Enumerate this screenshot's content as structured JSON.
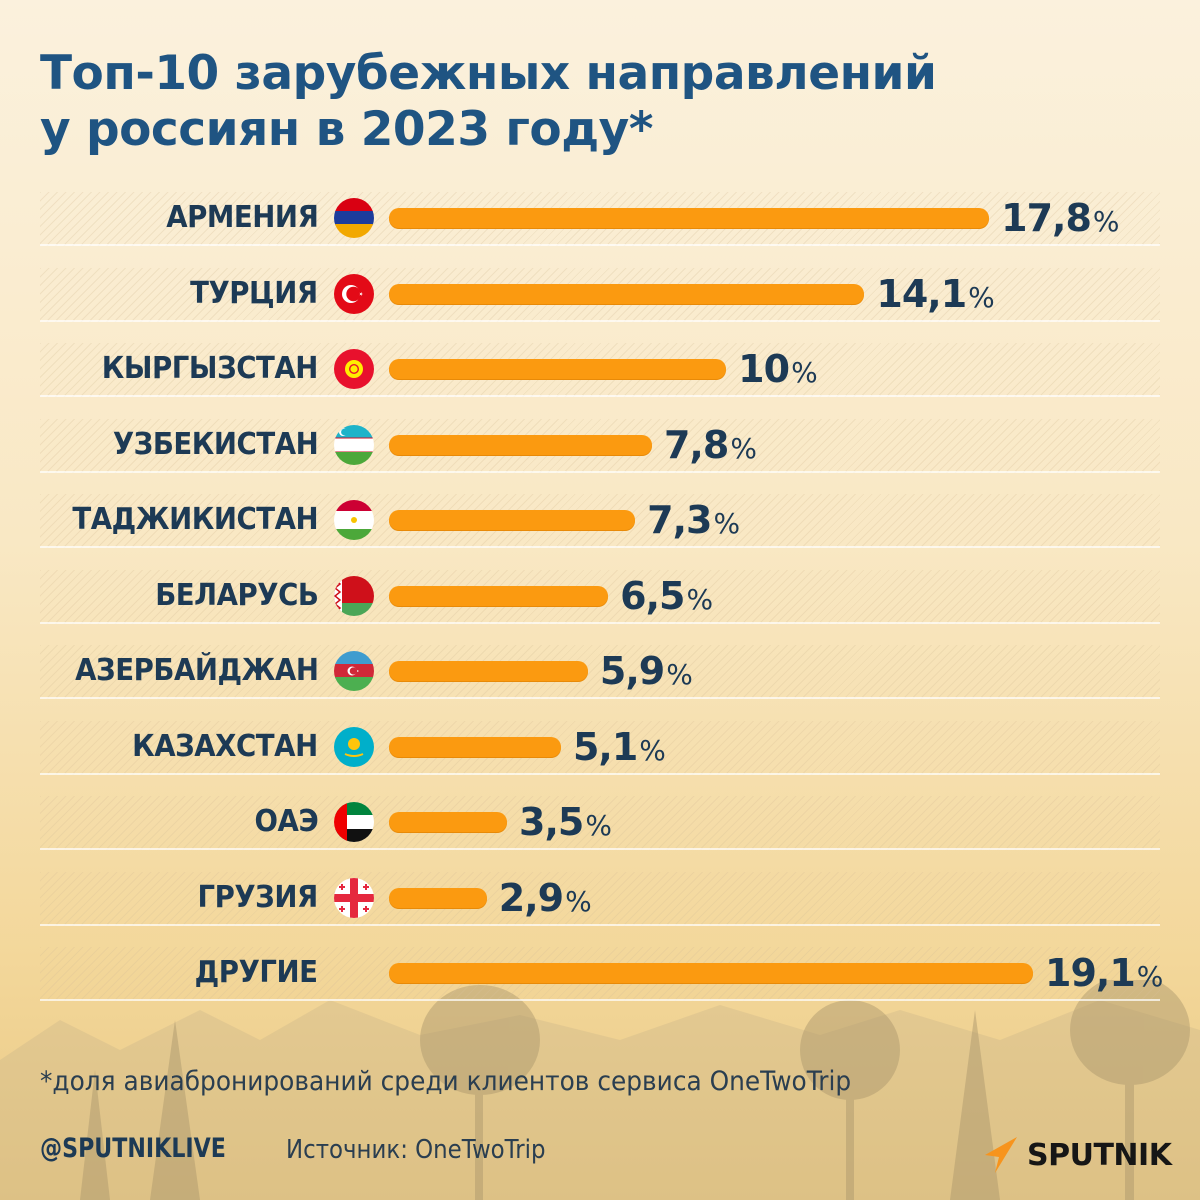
{
  "title": {
    "line1": "Топ-10 зарубежных направлений",
    "line2": "у россиян в 2023 году*"
  },
  "colors": {
    "bar": "#fb9a10",
    "title": "#1f5482",
    "text": "#1d3a55"
  },
  "chart_data": {
    "type": "bar",
    "orientation": "horizontal",
    "title": "Топ-10 зарубежных направлений у россиян в 2023 году*",
    "xlabel": "",
    "ylabel": "",
    "unit": "%",
    "xlim": [
      0,
      19.1
    ],
    "grid": false,
    "legend": "none",
    "categories": [
      "АРМЕНИЯ",
      "ТУРЦИЯ",
      "КЫРГЫЗСТАН",
      "УЗБЕКИСТАН",
      "ТАДЖИКИСТАН",
      "БЕЛАРУСЬ",
      "АЗЕРБАЙДЖАН",
      "КАЗАХСТАН",
      "ОАЭ",
      "ГРУЗИЯ",
      "ДРУГИЕ"
    ],
    "values": [
      17.8,
      14.1,
      10,
      7.8,
      7.3,
      6.5,
      5.9,
      5.1,
      3.5,
      2.9,
      19.1
    ],
    "value_labels": [
      "17,8",
      "14,1",
      "10",
      "7,8",
      "7,3",
      "6,5",
      "5,9",
      "5,1",
      "3,5",
      "2,9",
      "19,1"
    ],
    "flags": [
      "armenia-flag",
      "turkey-flag",
      "kyrgyzstan-flag",
      "uzbekistan-flag",
      "tajikistan-flag",
      "belarus-flag",
      "azerbaijan-flag",
      "kazakhstan-flag",
      "uae-flag",
      "georgia-flag",
      null
    ]
  },
  "percent_sign": "%",
  "footnote": "*доля авиабронирований среди клиентов сервиса OneTwoTrip",
  "footer": {
    "handle": "@SPUTNIKLIVE",
    "source": "Источник: OneTwoTrip",
    "logo": "SPUTNIK"
  }
}
